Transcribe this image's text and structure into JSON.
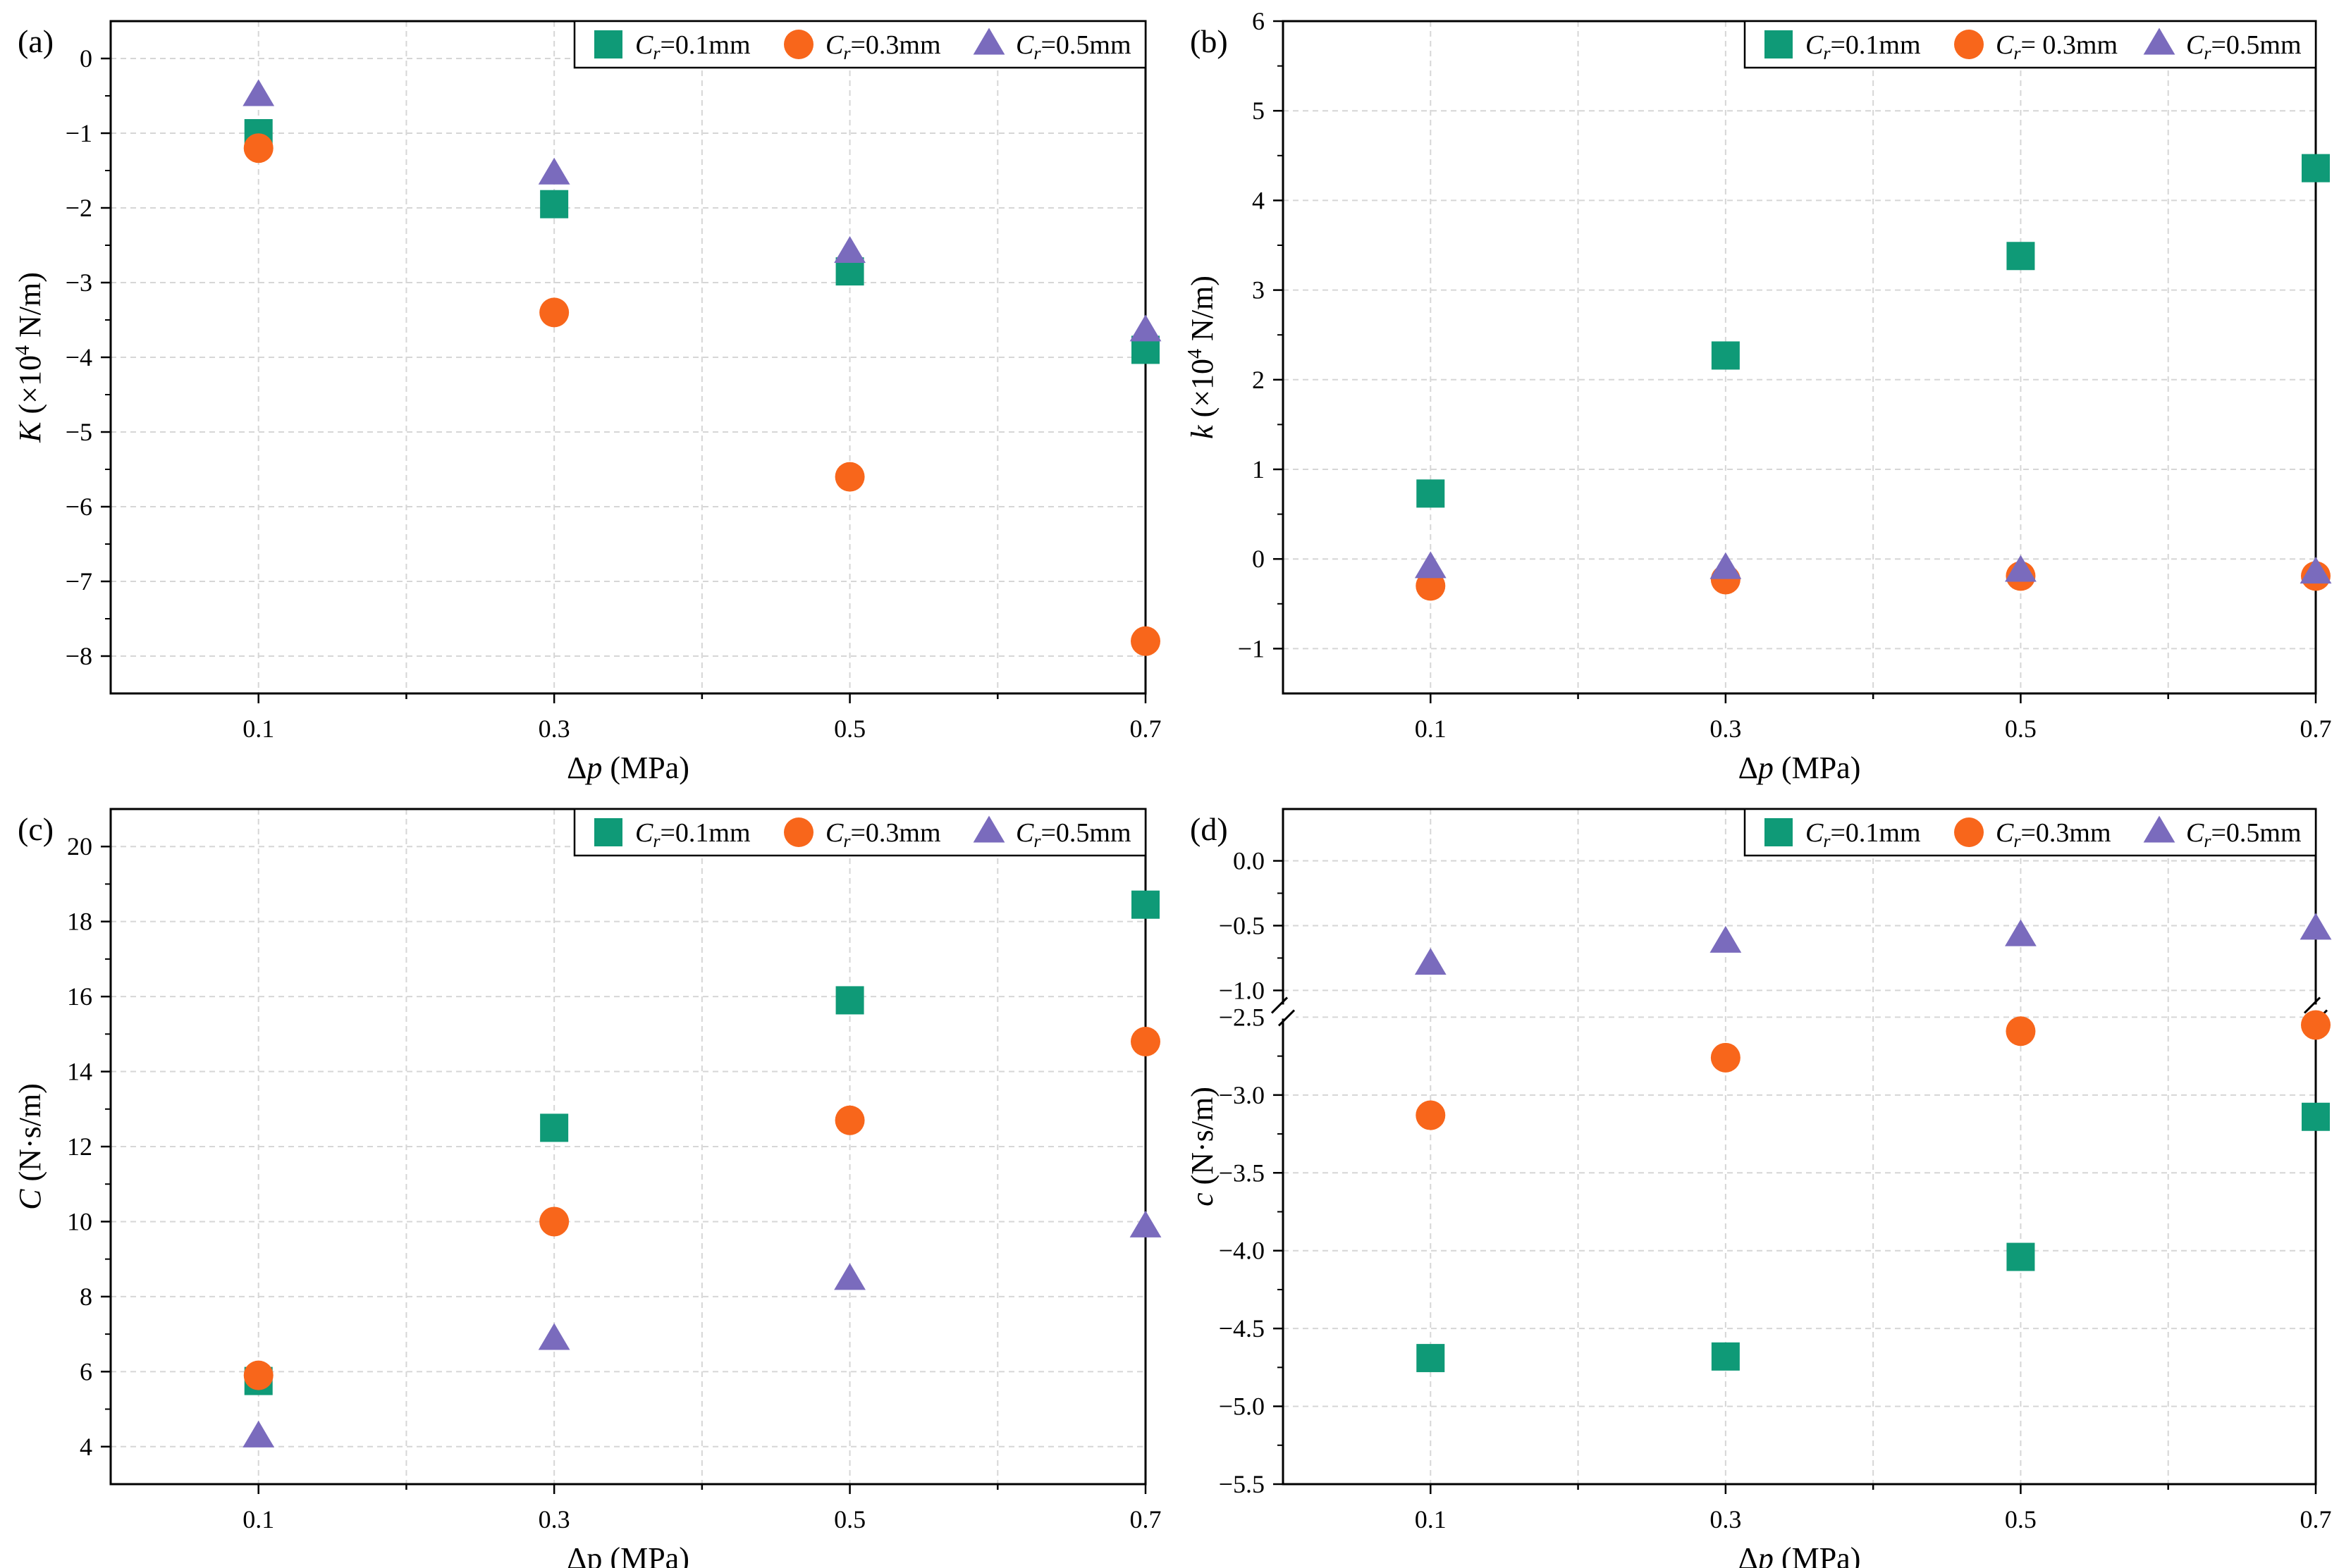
{
  "colors": {
    "square": "#0f9a77",
    "circle": "#f8661b",
    "triangle": "#7a6bbd",
    "grid": "#d6d6d6",
    "frame": "#000000"
  },
  "chart_data": [
    {
      "type": "scatter",
      "panel_label": "(a)",
      "xlabel": {
        "main": "Δ",
        "italic": "p",
        "rest": " (MPa)"
      },
      "ylabel": {
        "italic": "K",
        "pre": " (×10",
        "sup": "4",
        "post": " N/m)"
      },
      "x": [
        0.1,
        0.3,
        0.5,
        0.7
      ],
      "x_ticks": [
        "0.1",
        "0.3",
        "0.5",
        "0.7"
      ],
      "xlim": [
        0.0,
        0.7
      ],
      "ylim": [
        -8.5,
        0.5
      ],
      "y_ticks": [
        0,
        -1,
        -2,
        -3,
        -4,
        -5,
        -6,
        -7,
        -8
      ],
      "y_tick_labels": [
        "0",
        "−1",
        "−2",
        "−3",
        "−4",
        "−5",
        "−6",
        "−7",
        "−8"
      ],
      "series": [
        {
          "name": "C_r=0.1mm",
          "label_italic": "C",
          "label_sub": "r",
          "label_rest": "=0.1mm",
          "marker": "square",
          "values": [
            -1.0,
            -1.95,
            -2.85,
            -3.9
          ]
        },
        {
          "name": "C_r=0.3mm",
          "label_italic": "C",
          "label_sub": "r",
          "label_rest": "=0.3mm",
          "marker": "circle",
          "values": [
            -1.2,
            -3.4,
            -5.6,
            -7.8
          ]
        },
        {
          "name": "C_r=0.5mm",
          "label_italic": "C",
          "label_sub": "r",
          "label_rest": "=0.5mm",
          "marker": "triangle",
          "values": [
            -0.5,
            -1.55,
            -2.6,
            -3.65
          ]
        }
      ],
      "legend": "top-right"
    },
    {
      "type": "scatter",
      "panel_label": "(b)",
      "xlabel": {
        "main": "Δ",
        "italic": "p",
        "rest": " (MPa)"
      },
      "ylabel": {
        "italic": "k",
        "pre": " (×10",
        "sup": "4",
        "post": " N/m)"
      },
      "x": [
        0.1,
        0.3,
        0.5,
        0.7
      ],
      "x_ticks": [
        "0.1",
        "0.3",
        "0.5",
        "0.7"
      ],
      "xlim": [
        0.0,
        0.7
      ],
      "ylim": [
        -1.5,
        6
      ],
      "y_ticks": [
        6,
        5,
        4,
        3,
        2,
        1,
        0,
        -1
      ],
      "y_tick_labels": [
        "6",
        "5",
        "4",
        "3",
        "2",
        "1",
        "0",
        "−1"
      ],
      "series": [
        {
          "name": "C_r=0.1mm",
          "label_italic": "C",
          "label_sub": "r",
          "label_rest": "=0.1mm",
          "marker": "square",
          "values": [
            0.73,
            2.27,
            3.38,
            4.36
          ]
        },
        {
          "name": "C_r= 0.3mm",
          "label_italic": "C",
          "label_sub": "r",
          "label_rest": "= 0.3mm",
          "marker": "circle",
          "values": [
            -0.3,
            -0.23,
            -0.19,
            -0.19
          ]
        },
        {
          "name": "C_r=0.5mm",
          "label_italic": "C",
          "label_sub": "r",
          "label_rest": "=0.5mm",
          "marker": "triangle",
          "values": [
            -0.1,
            -0.11,
            -0.14,
            -0.16
          ]
        }
      ],
      "legend": "top-right"
    },
    {
      "type": "scatter",
      "panel_label": "(c)",
      "xlabel": {
        "main": "Δp",
        "italic": "",
        "rest": " (MPa)"
      },
      "ylabel": {
        "italic": "C",
        "pre": " (N·s/m)",
        "sup": "",
        "post": ""
      },
      "x": [
        0.1,
        0.3,
        0.5,
        0.7
      ],
      "x_ticks": [
        "0.1",
        "0.3",
        "0.5",
        "0.7"
      ],
      "xlim": [
        0.0,
        0.7
      ],
      "ylim": [
        3,
        21
      ],
      "y_ticks": [
        20,
        18,
        16,
        14,
        12,
        10,
        8,
        6,
        4
      ],
      "y_tick_labels": [
        "20",
        "18",
        "16",
        "14",
        "12",
        "10",
        "8",
        "6",
        "4"
      ],
      "series": [
        {
          "name": "C_r=0.1mm",
          "label_italic": "C",
          "label_sub": "r",
          "label_rest": "=0.1mm",
          "marker": "square",
          "values": [
            5.75,
            12.5,
            15.9,
            18.45
          ]
        },
        {
          "name": "C_r=0.3mm",
          "label_italic": "C",
          "label_sub": "r",
          "label_rest": "=0.3mm",
          "marker": "circle",
          "values": [
            5.9,
            10.0,
            12.7,
            14.8
          ]
        },
        {
          "name": "C_r=0.5mm",
          "label_italic": "C",
          "label_sub": "r",
          "label_rest": "=0.5mm",
          "marker": "triangle",
          "values": [
            4.25,
            6.85,
            8.45,
            9.85
          ]
        }
      ],
      "legend": "top-right"
    },
    {
      "type": "scatter",
      "panel_label": "(d)",
      "xlabel": {
        "main": "Δ",
        "italic": "p",
        "rest": " (MPa)"
      },
      "ylabel": {
        "italic": "c",
        "pre": " (N·s/m)",
        "sup": "",
        "post": ""
      },
      "x": [
        0.1,
        0.3,
        0.5,
        0.7
      ],
      "x_ticks": [
        "0.1",
        "0.3",
        "0.5",
        "0.7"
      ],
      "xlim": [
        0.0,
        0.7
      ],
      "broken_axis": true,
      "upper_ylim": [
        -1.0,
        0.4
      ],
      "lower_ylim": [
        -5.5,
        -2.5
      ],
      "upper_ticks": [
        0.0,
        -0.5,
        -1.0
      ],
      "upper_tick_labels": [
        "0.0",
        "−0.5",
        "−1.0"
      ],
      "lower_ticks": [
        -2.5,
        -3.0,
        -3.5,
        -4.0,
        -4.5,
        -5.0,
        -5.5
      ],
      "lower_tick_labels": [
        "−2.5",
        "−3.0",
        "−3.5",
        "−4.0",
        "−4.5",
        "−5.0",
        "−5.5"
      ],
      "series": [
        {
          "name": "C_r=0.1mm",
          "label_italic": "C",
          "label_sub": "r",
          "label_rest": "=0.1mm",
          "marker": "square",
          "values": [
            -4.69,
            -4.68,
            -4.04,
            -3.14
          ]
        },
        {
          "name": "C_r=0.3mm",
          "label_italic": "C",
          "label_sub": "r",
          "label_rest": "=0.3mm",
          "marker": "circle",
          "values": [
            -3.13,
            -2.76,
            -2.59,
            -2.55
          ]
        },
        {
          "name": "C_r=0.5mm",
          "label_italic": "C",
          "label_sub": "r",
          "label_rest": "=0.5mm",
          "marker": "triangle",
          "values": [
            -0.8,
            -0.63,
            -0.58,
            -0.53
          ]
        }
      ],
      "legend": "top-right"
    }
  ]
}
